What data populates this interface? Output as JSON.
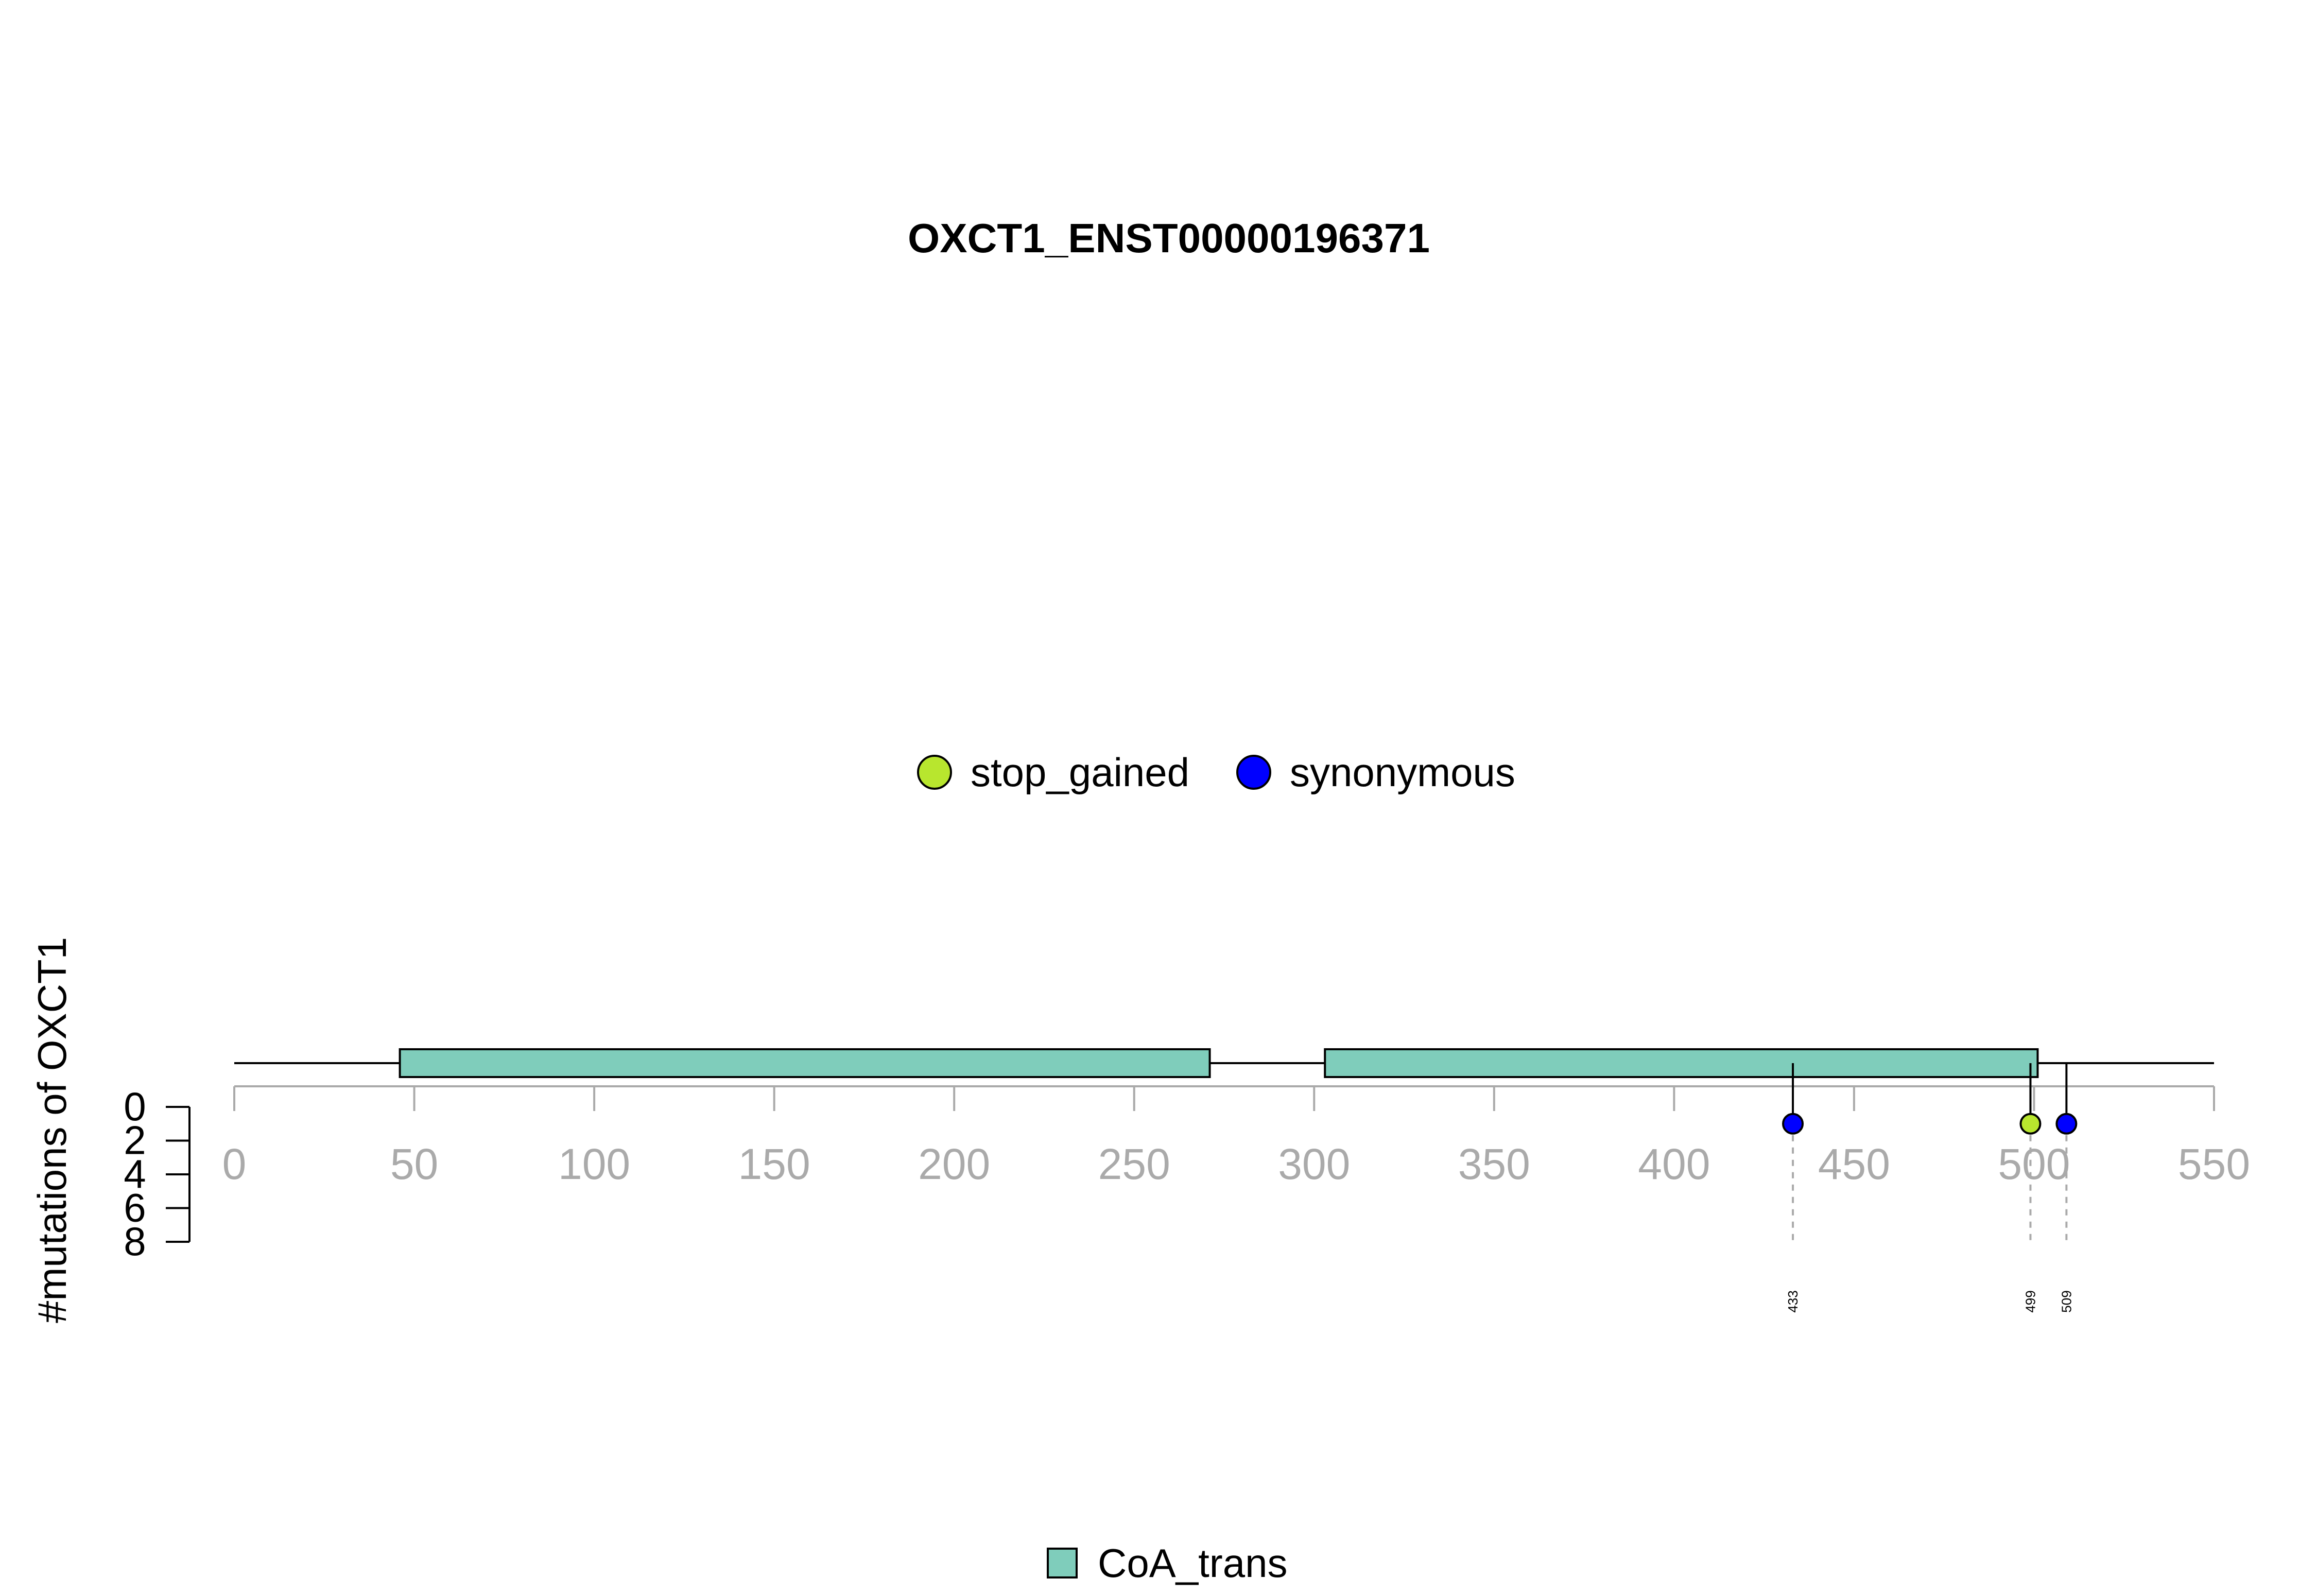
{
  "chart_data": {
    "type": "lollipop",
    "title": "OXCT1_ENST00000196371",
    "ylabel": "#mutations of OXCT1",
    "x_axis": {
      "min": 0,
      "max": 550,
      "ticks": [
        0,
        50,
        100,
        150,
        200,
        250,
        300,
        350,
        400,
        450,
        500,
        550
      ],
      "color": "#AAAAAA"
    },
    "y_axis": {
      "range": [
        0,
        8
      ],
      "ticks": [
        0,
        2,
        4,
        6,
        8
      ],
      "direction": "downward"
    },
    "protein_length": 550,
    "domains": [
      {
        "name": "CoA_trans",
        "start": 46,
        "end": 271,
        "color": "#7FCDBB"
      },
      {
        "name": "CoA_trans",
        "start": 303,
        "end": 501,
        "color": "#7FCDBB"
      }
    ],
    "mutations": [
      {
        "position": 433,
        "count": 1,
        "type": "synonymous",
        "label": "433"
      },
      {
        "position": 499,
        "count": 1,
        "type": "stop_gained",
        "label": "499"
      },
      {
        "position": 509,
        "count": 1,
        "type": "synonymous",
        "label": "509"
      }
    ],
    "mutation_legend": [
      {
        "name": "stop_gained",
        "color": "#B8E62E"
      },
      {
        "name": "synonymous",
        "color": "#0000FF"
      }
    ],
    "domain_legend": [
      {
        "name": "CoA_trans",
        "color": "#7FCDBB"
      }
    ]
  }
}
